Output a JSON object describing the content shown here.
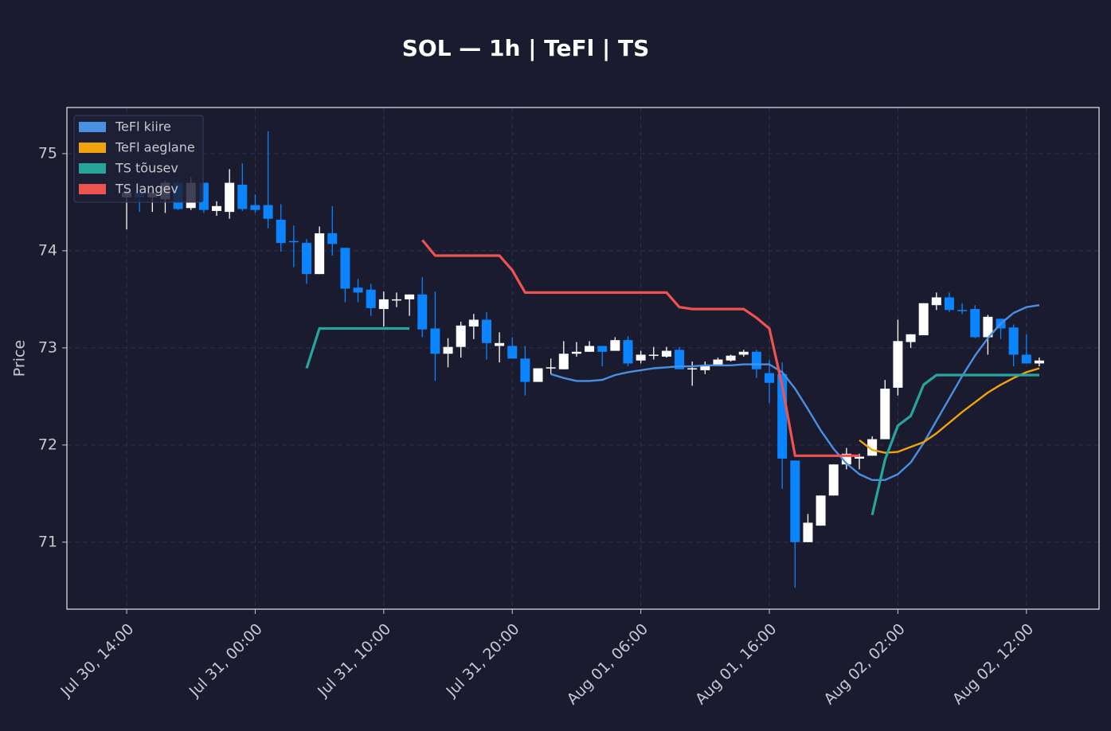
{
  "chart_data": {
    "type": "candlestick",
    "title": "SOL — 1h  |  TeFl  |  TS",
    "ylabel": "Price",
    "x": [
      "Jul 30, 14:00",
      "Jul 30, 15:00",
      "Jul 30, 16:00",
      "Jul 30, 17:00",
      "Jul 30, 18:00",
      "Jul 30, 19:00",
      "Jul 30, 20:00",
      "Jul 30, 21:00",
      "Jul 30, 22:00",
      "Jul 30, 23:00",
      "Jul 31, 00:00",
      "Jul 31, 01:00",
      "Jul 31, 02:00",
      "Jul 31, 03:00",
      "Jul 31, 04:00",
      "Jul 31, 05:00",
      "Jul 31, 06:00",
      "Jul 31, 07:00",
      "Jul 31, 08:00",
      "Jul 31, 09:00",
      "Jul 31, 10:00",
      "Jul 31, 11:00",
      "Jul 31, 12:00",
      "Jul 31, 13:00",
      "Jul 31, 14:00",
      "Jul 31, 15:00",
      "Jul 31, 16:00",
      "Jul 31, 17:00",
      "Jul 31, 18:00",
      "Jul 31, 19:00",
      "Jul 31, 20:00",
      "Jul 31, 21:00",
      "Jul 31, 22:00",
      "Jul 31, 23:00",
      "Aug 01, 00:00",
      "Aug 01, 01:00",
      "Aug 01, 02:00",
      "Aug 01, 03:00",
      "Aug 01, 04:00",
      "Aug 01, 05:00",
      "Aug 01, 06:00",
      "Aug 01, 07:00",
      "Aug 01, 08:00",
      "Aug 01, 09:00",
      "Aug 01, 10:00",
      "Aug 01, 11:00",
      "Aug 01, 12:00",
      "Aug 01, 13:00",
      "Aug 01, 14:00",
      "Aug 01, 15:00",
      "Aug 01, 16:00",
      "Aug 01, 17:00",
      "Aug 01, 18:00",
      "Aug 01, 19:00",
      "Aug 01, 20:00",
      "Aug 01, 21:00",
      "Aug 01, 22:00",
      "Aug 01, 23:00",
      "Aug 02, 00:00",
      "Aug 02, 01:00",
      "Aug 02, 02:00",
      "Aug 02, 03:00",
      "Aug 02, 04:00",
      "Aug 02, 05:00",
      "Aug 02, 06:00",
      "Aug 02, 07:00",
      "Aug 02, 08:00",
      "Aug 02, 09:00",
      "Aug 02, 10:00",
      "Aug 02, 11:00",
      "Aug 02, 12:00",
      "Aug 02, 13:00"
    ],
    "open": [
      74.55,
      74.6,
      74.55,
      74.53,
      74.7,
      74.44,
      74.7,
      74.41,
      74.4,
      74.68,
      74.47,
      74.47,
      74.32,
      74.1,
      74.08,
      73.76,
      74.18,
      74.03,
      73.62,
      73.6,
      73.4,
      73.49,
      73.5,
      73.55,
      73.2,
      72.94,
      73.01,
      73.22,
      73.29,
      73.02,
      73.02,
      72.89,
      72.65,
      72.79,
      72.78,
      72.94,
      72.96,
      73.02,
      72.97,
      73.08,
      72.87,
      72.92,
      72.91,
      72.98,
      72.78,
      72.77,
      72.82,
      72.87,
      72.93,
      72.96,
      72.74,
      72.73,
      71.84,
      71.0,
      71.17,
      71.48,
      71.8,
      71.86,
      71.89,
      72.06,
      72.59,
      73.06,
      73.13,
      73.44,
      73.52,
      73.39,
      73.4,
      73.11,
      73.3,
      73.21,
      72.93,
      72.84
    ],
    "high": [
      74.65,
      74.7,
      74.68,
      74.72,
      74.72,
      74.76,
      74.7,
      74.51,
      74.84,
      74.9,
      74.58,
      75.23,
      74.48,
      74.26,
      74.12,
      74.25,
      74.46,
      74.03,
      73.71,
      73.66,
      73.58,
      73.57,
      73.55,
      73.73,
      73.58,
      73.1,
      73.27,
      73.35,
      73.37,
      73.16,
      73.11,
      73.02,
      72.79,
      72.89,
      73.07,
      73.06,
      73.07,
      73.02,
      73.11,
      73.12,
      72.97,
      73.01,
      73.01,
      73.01,
      72.86,
      72.86,
      72.9,
      72.93,
      72.98,
      72.98,
      72.88,
      72.85,
      71.84,
      71.29,
      71.48,
      71.8,
      71.97,
      71.91,
      72.09,
      72.67,
      73.29,
      73.14,
      73.46,
      73.57,
      73.57,
      73.46,
      73.44,
      73.34,
      73.3,
      73.24,
      73.14,
      72.9
    ],
    "low": [
      74.22,
      74.4,
      74.4,
      74.39,
      74.42,
      74.42,
      74.39,
      74.36,
      74.33,
      74.41,
      74.39,
      74.23,
      73.99,
      73.83,
      73.66,
      73.76,
      73.95,
      73.47,
      73.47,
      73.33,
      73.22,
      73.42,
      73.33,
      73.11,
      72.66,
      72.8,
      72.9,
      73.09,
      72.88,
      72.85,
      72.89,
      72.51,
      72.65,
      72.73,
      72.78,
      72.91,
      72.96,
      72.81,
      72.97,
      72.81,
      72.84,
      72.88,
      72.9,
      72.78,
      72.61,
      72.73,
      72.81,
      72.86,
      72.91,
      72.69,
      72.43,
      71.55,
      70.53,
      71.0,
      71.17,
      71.48,
      71.75,
      71.75,
      71.89,
      72.06,
      72.51,
      73.0,
      73.13,
      73.39,
      73.37,
      73.35,
      73.1,
      72.93,
      73.09,
      72.81,
      72.84,
      72.81
    ],
    "close": [
      74.6,
      74.55,
      74.6,
      74.7,
      74.43,
      74.7,
      74.42,
      74.46,
      74.7,
      74.43,
      74.42,
      74.33,
      74.08,
      74.09,
      73.76,
      74.18,
      74.07,
      73.61,
      73.57,
      73.41,
      73.5,
      73.5,
      73.55,
      73.19,
      72.94,
      73.01,
      73.23,
      73.29,
      73.05,
      73.05,
      72.89,
      72.65,
      72.79,
      72.8,
      72.94,
      72.96,
      73.02,
      72.96,
      73.08,
      72.84,
      72.93,
      72.93,
      72.97,
      72.78,
      72.79,
      72.82,
      72.88,
      72.92,
      72.96,
      72.78,
      72.64,
      71.86,
      71.0,
      71.2,
      71.48,
      71.8,
      71.91,
      71.88,
      72.06,
      72.58,
      73.07,
      73.14,
      73.46,
      73.52,
      73.39,
      73.38,
      73.11,
      73.32,
      73.2,
      72.93,
      72.84,
      72.87
    ],
    "up_color": "#ffffff",
    "down_color": "#0a84ff",
    "series": [
      {
        "name": "TeFl kiire",
        "color": "#4a90e2",
        "values": [
          null,
          null,
          null,
          null,
          null,
          null,
          null,
          null,
          null,
          null,
          null,
          null,
          null,
          null,
          null,
          null,
          null,
          null,
          null,
          null,
          null,
          null,
          null,
          null,
          null,
          null,
          null,
          null,
          null,
          null,
          null,
          null,
          null,
          72.73,
          72.69,
          72.66,
          72.66,
          72.67,
          72.72,
          72.75,
          72.77,
          72.79,
          72.8,
          72.81,
          72.81,
          72.82,
          72.82,
          72.82,
          72.83,
          72.83,
          72.83,
          72.75,
          72.58,
          72.37,
          72.15,
          71.96,
          71.81,
          71.7,
          71.64,
          71.64,
          71.7,
          71.82,
          72.02,
          72.25,
          72.48,
          72.71,
          72.92,
          73.1,
          73.25,
          73.36,
          73.42,
          73.44
        ]
      },
      {
        "name": "TeFl aeglane",
        "color": "#f0a30a",
        "values": [
          null,
          null,
          null,
          null,
          null,
          null,
          null,
          null,
          null,
          null,
          null,
          null,
          null,
          null,
          null,
          null,
          null,
          null,
          null,
          null,
          null,
          null,
          null,
          null,
          null,
          null,
          null,
          null,
          null,
          null,
          null,
          null,
          null,
          null,
          null,
          null,
          null,
          null,
          null,
          null,
          null,
          null,
          null,
          null,
          null,
          null,
          null,
          null,
          null,
          null,
          null,
          null,
          null,
          null,
          null,
          null,
          null,
          72.05,
          71.95,
          71.92,
          71.93,
          71.98,
          72.03,
          72.12,
          72.23,
          72.34,
          72.44,
          72.54,
          72.62,
          72.69,
          72.75,
          72.79
        ]
      },
      {
        "name": "TS tõusev",
        "color": "#26a69a",
        "values": [
          null,
          null,
          null,
          null,
          null,
          null,
          null,
          null,
          null,
          null,
          null,
          null,
          null,
          null,
          72.79,
          73.2,
          73.2,
          73.2,
          73.2,
          73.2,
          73.2,
          73.2,
          73.2,
          null,
          null,
          null,
          null,
          null,
          null,
          null,
          null,
          null,
          null,
          null,
          null,
          null,
          null,
          null,
          null,
          null,
          null,
          null,
          null,
          null,
          null,
          null,
          null,
          null,
          null,
          null,
          null,
          null,
          null,
          null,
          null,
          null,
          null,
          null,
          71.28,
          71.85,
          72.2,
          72.3,
          72.62,
          72.72,
          72.72,
          72.72,
          72.72,
          72.72,
          72.72,
          72.72,
          72.72,
          72.72
        ]
      },
      {
        "name": "TS langev",
        "color": "#ef5350",
        "values": [
          null,
          null,
          null,
          null,
          null,
          null,
          null,
          null,
          null,
          null,
          null,
          null,
          null,
          null,
          null,
          null,
          null,
          null,
          null,
          null,
          null,
          null,
          null,
          74.11,
          73.95,
          73.95,
          73.95,
          73.95,
          73.95,
          73.95,
          73.8,
          73.57,
          73.57,
          73.57,
          73.57,
          73.57,
          73.57,
          73.57,
          73.57,
          73.57,
          73.57,
          73.57,
          73.57,
          73.42,
          73.4,
          73.4,
          73.4,
          73.4,
          73.4,
          73.31,
          73.2,
          72.61,
          71.89,
          71.89,
          71.89,
          71.89,
          71.89,
          71.89,
          null,
          null,
          null,
          null,
          null,
          null,
          null,
          null,
          null,
          null,
          null,
          null,
          null,
          null
        ]
      }
    ],
    "xlim": [
      "Jul 30, 09:21",
      "Aug 02, 17:39"
    ],
    "xticks": [
      "Jul 30, 14:00",
      "Jul 31, 00:00",
      "Jul 31, 10:00",
      "Jul 31, 20:00",
      "Aug 01, 06:00",
      "Aug 01, 16:00",
      "Aug 02, 02:00",
      "Aug 02, 12:00"
    ],
    "ylim": [
      70.31,
      75.475
    ],
    "yticks": [
      71,
      72,
      73,
      74,
      75
    ],
    "grid": true,
    "legend": "upper left"
  }
}
